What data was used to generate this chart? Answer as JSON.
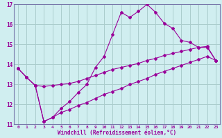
{
  "xlabel": "Windchill (Refroidissement éolien,°C)",
  "bg_color": "#d0eef0",
  "grid_color": "#aacccc",
  "line_color": "#990099",
  "spine_color": "#7777aa",
  "xlim": [
    -0.5,
    23.5
  ],
  "ylim": [
    11,
    17
  ],
  "yticks": [
    11,
    12,
    13,
    14,
    15,
    16,
    17
  ],
  "xticks": [
    0,
    1,
    2,
    3,
    4,
    5,
    6,
    7,
    8,
    9,
    10,
    11,
    12,
    13,
    14,
    15,
    16,
    17,
    18,
    19,
    20,
    21,
    22,
    23
  ],
  "s1_x": [
    0,
    1,
    2,
    3,
    4,
    5,
    6,
    7,
    8,
    9,
    10,
    11,
    12,
    13,
    14,
    15,
    16,
    17,
    18,
    19,
    20,
    21,
    22,
    23
  ],
  "s1_y": [
    13.8,
    13.35,
    12.95,
    11.15,
    11.35,
    11.8,
    12.15,
    12.6,
    13.0,
    13.85,
    14.4,
    15.5,
    16.6,
    16.35,
    16.65,
    17.0,
    16.6,
    16.05,
    15.8,
    15.2,
    15.1,
    14.85,
    14.85,
    14.2
  ],
  "s2_x": [
    0,
    1,
    2,
    3,
    4,
    5,
    6,
    7,
    8,
    9,
    10,
    11,
    12,
    13,
    14,
    15,
    16,
    17,
    18,
    19,
    20,
    21,
    22,
    23
  ],
  "s2_y": [
    13.8,
    13.35,
    12.95,
    12.9,
    12.95,
    13.0,
    13.05,
    13.15,
    13.3,
    13.45,
    13.6,
    13.75,
    13.85,
    13.95,
    14.05,
    14.2,
    14.3,
    14.45,
    14.55,
    14.65,
    14.75,
    14.85,
    14.9,
    14.2
  ],
  "s3_x": [
    0,
    1,
    2,
    3,
    4,
    5,
    6,
    7,
    8,
    9,
    10,
    11,
    12,
    13,
    14,
    15,
    16,
    17,
    18,
    19,
    20,
    21,
    22,
    23
  ],
  "s3_y": [
    13.8,
    13.35,
    12.95,
    11.15,
    11.35,
    11.6,
    11.75,
    11.95,
    12.1,
    12.3,
    12.5,
    12.65,
    12.8,
    13.0,
    13.15,
    13.3,
    13.5,
    13.65,
    13.8,
    13.95,
    14.1,
    14.25,
    14.4,
    14.2
  ]
}
